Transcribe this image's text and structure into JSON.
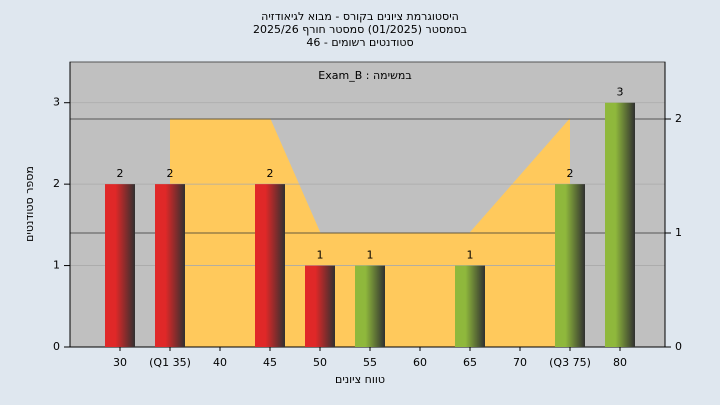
{
  "chart_data": {
    "type": "bar",
    "title": [
      "היסטוגרמת ציונים בקורס - מבוא לגיאודזיה",
      "בסמסטר  (01/2025)  סמסטר חורף 2025/26",
      "46 - סטודנטים רשומים"
    ],
    "annotation": "במשימה : Exam_B",
    "x_label": "טווח ציונים",
    "y_label": "מספר סטודנטים",
    "categories": [
      "30",
      "(Q1 35)",
      "40",
      "45",
      "50",
      "55",
      "60",
      "65",
      "70",
      "(Q3 75)",
      "80"
    ],
    "series": [
      {
        "type": "bar",
        "values": [
          2,
          2,
          null,
          2,
          1,
          1,
          null,
          1,
          null,
          2,
          3
        ],
        "colors": [
          "#e02828",
          "#e02828",
          null,
          "#e02828",
          "#e02828",
          "#8fb83c",
          null,
          "#8fb83c",
          null,
          "#8fb83c",
          "#8fb83c"
        ]
      },
      {
        "type": "area",
        "axis": "y2",
        "color": "#ffc95c",
        "values": [
          null,
          2,
          2,
          2,
          1,
          1,
          1,
          1,
          1.5,
          2,
          null
        ]
      }
    ],
    "ylim": [
      0,
      3.5
    ],
    "yticks": [
      0,
      1,
      2,
      3
    ],
    "y2lim": [
      0,
      2.5
    ],
    "y2ticks": [
      0,
      1,
      2
    ],
    "grid": true
  }
}
